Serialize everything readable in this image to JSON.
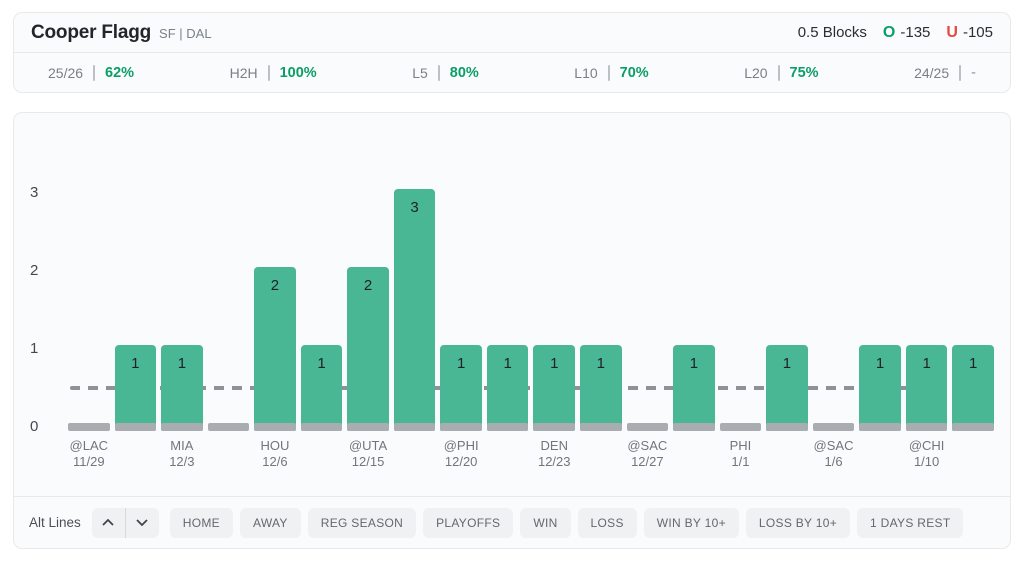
{
  "header": {
    "player_name": "Cooper Flagg",
    "player_meta": "SF | DAL",
    "prop_line_label": "0.5 Blocks",
    "over_symbol": "O",
    "over_odds": "-135",
    "under_symbol": "U",
    "under_odds": "-105"
  },
  "stats": [
    {
      "label": "25/26",
      "value": "62%"
    },
    {
      "label": "H2H",
      "value": "100%"
    },
    {
      "label": "L5",
      "value": "80%"
    },
    {
      "label": "L10",
      "value": "70%"
    },
    {
      "label": "L20",
      "value": "75%"
    },
    {
      "label": "24/25",
      "value": "-"
    }
  ],
  "chart_data": {
    "type": "bar",
    "title": "Cooper Flagg blocks per game vs prop line",
    "ylim": [
      0,
      3
    ],
    "yticks": [
      0,
      1,
      2,
      3
    ],
    "threshold_line": 0.5,
    "grid": false,
    "bars": [
      {
        "team": "@LAC",
        "date": "11/29",
        "value": 0
      },
      {
        "team": "",
        "date": "",
        "value": 1
      },
      {
        "team": "MIA",
        "date": "12/3",
        "value": 1
      },
      {
        "team": "",
        "date": "",
        "value": 0
      },
      {
        "team": "HOU",
        "date": "12/6",
        "value": 2
      },
      {
        "team": "",
        "date": "",
        "value": 1
      },
      {
        "team": "@UTA",
        "date": "12/15",
        "value": 2
      },
      {
        "team": "",
        "date": "",
        "value": 3
      },
      {
        "team": "@PHI",
        "date": "12/20",
        "value": 1
      },
      {
        "team": "",
        "date": "",
        "value": 1
      },
      {
        "team": "DEN",
        "date": "12/23",
        "value": 1
      },
      {
        "team": "",
        "date": "",
        "value": 1
      },
      {
        "team": "@SAC",
        "date": "12/27",
        "value": 0
      },
      {
        "team": "",
        "date": "",
        "value": 1
      },
      {
        "team": "PHI",
        "date": "1/1",
        "value": 0
      },
      {
        "team": "",
        "date": "",
        "value": 1
      },
      {
        "team": "@SAC",
        "date": "1/6",
        "value": 0
      },
      {
        "team": "",
        "date": "",
        "value": 1
      },
      {
        "team": "@CHI",
        "date": "1/10",
        "value": 1
      },
      {
        "team": "",
        "date": "",
        "value": 1
      }
    ]
  },
  "filters": {
    "alt_lines_label": "Alt Lines",
    "chips": [
      "HOME",
      "AWAY",
      "REG SEASON",
      "PLAYOFFS",
      "WIN",
      "LOSS",
      "WIN BY 10+",
      "LOSS BY 10+",
      "1 DAYS REST"
    ]
  },
  "colors": {
    "bar_green": "#49b793",
    "accent_green": "#0b9e66",
    "under_red": "#e8493f",
    "baseline_gray": "#a9adb1",
    "dash_gray": "#8e9296"
  }
}
